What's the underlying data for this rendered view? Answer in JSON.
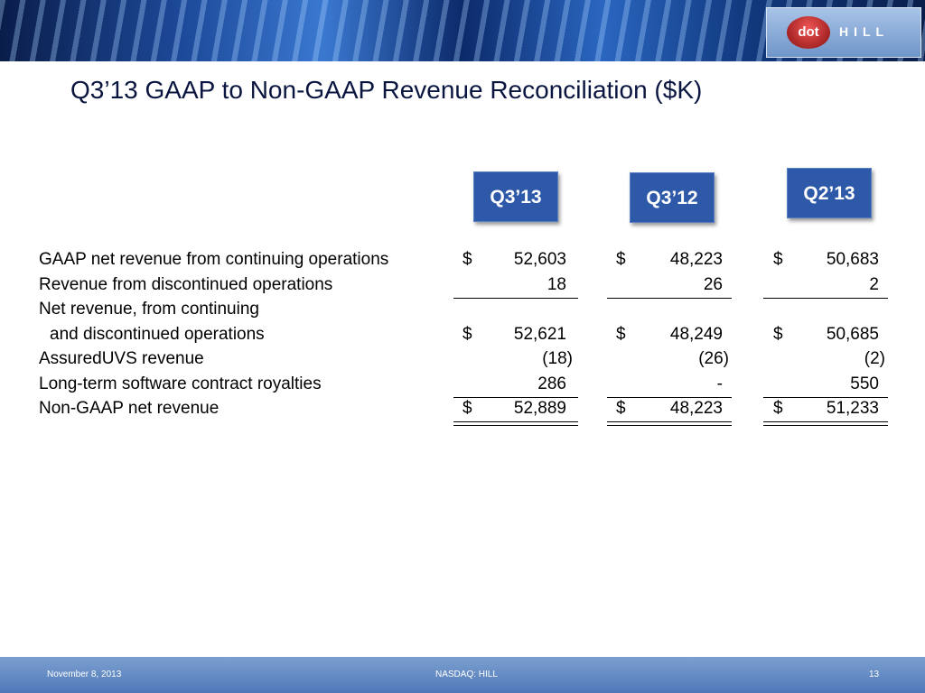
{
  "header": {
    "title": "Q3’13 GAAP to Non-GAAP Revenue Reconciliation ($K)",
    "logo": {
      "left": "dot",
      "right": "HILL"
    }
  },
  "table": {
    "columns": [
      "Q3’13",
      "Q3’12",
      "Q2’13"
    ],
    "rows": [
      {
        "label": "GAAP net revenue from continuing operations",
        "cells": [
          {
            "symbol": "$",
            "value": "52,603"
          },
          {
            "symbol": "$",
            "value": "48,223"
          },
          {
            "symbol": "$",
            "value": "50,683"
          }
        ]
      },
      {
        "label": "Revenue from discontinued operations",
        "cells": [
          {
            "value": "18"
          },
          {
            "value": "26"
          },
          {
            "value": "2"
          }
        ],
        "rule": "single"
      },
      {
        "label": "Net revenue, from continuing",
        "label_2": "and discontinued operations",
        "cells": [
          {
            "symbol": "$",
            "value": "52,621"
          },
          {
            "symbol": "$",
            "value": "48,249"
          },
          {
            "symbol": "$",
            "value": "50,685"
          }
        ]
      },
      {
        "label": "AssuredUVS revenue",
        "cells": [
          {
            "value": "(18)"
          },
          {
            "value": "(26)"
          },
          {
            "value": "(2)"
          }
        ]
      },
      {
        "label": "Long-term software contract royalties",
        "cells": [
          {
            "value": "286"
          },
          {
            "value": "-"
          },
          {
            "value": "550"
          }
        ],
        "rule": "single"
      },
      {
        "label": "Non-GAAP net revenue",
        "cells": [
          {
            "symbol": "$",
            "value": "52,889"
          },
          {
            "symbol": "$",
            "value": "48,223"
          },
          {
            "symbol": "$",
            "value": "51,233"
          }
        ],
        "rule": "double"
      }
    ]
  },
  "footer": {
    "date": "November 8, 2013",
    "center": "NASDAQ: HILL",
    "page": "13"
  }
}
